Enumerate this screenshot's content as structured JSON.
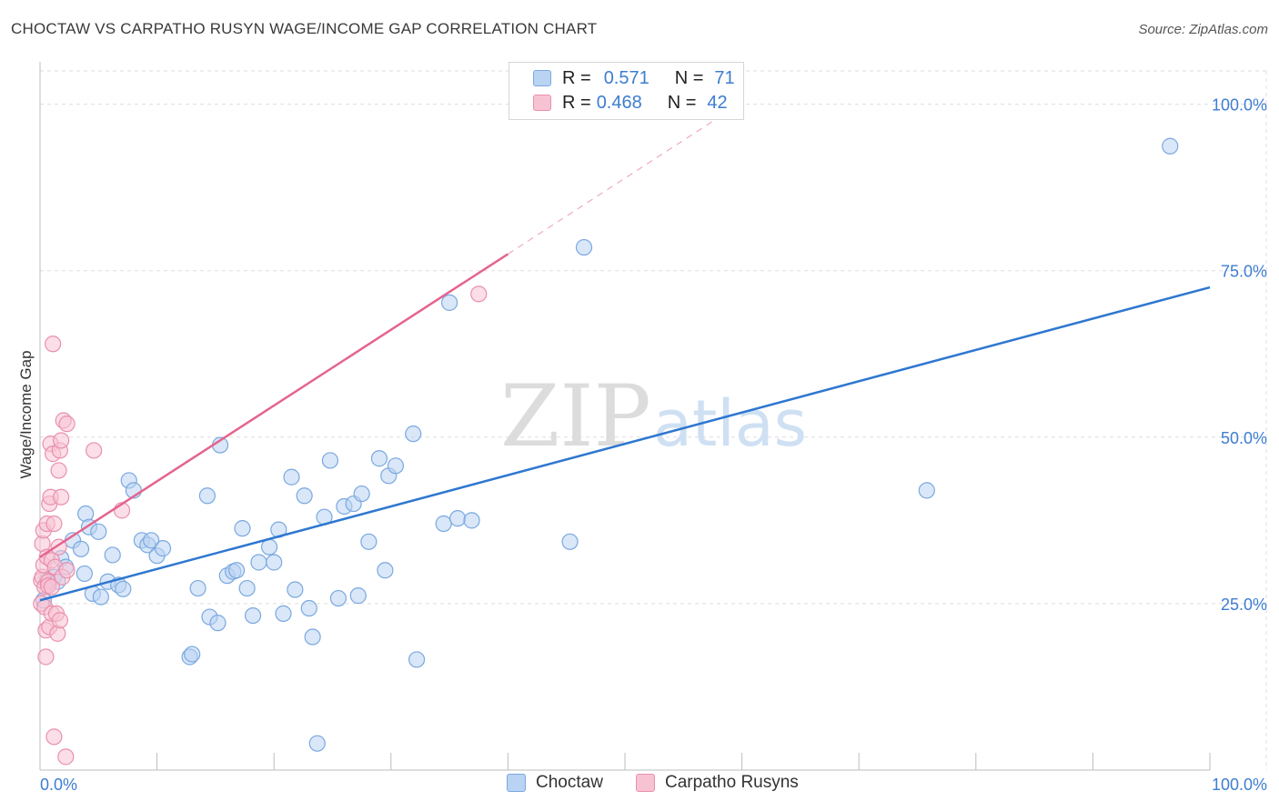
{
  "header": {
    "title": "CHOCTAW VS CARPATHO RUSYN WAGE/INCOME GAP CORRELATION CHART",
    "source": "Source: ZipAtlas.com"
  },
  "watermark": {
    "zip": "ZIP",
    "atlas": "atlas"
  },
  "legend_top": {
    "rows": [
      {
        "r_label": "R =",
        "r_value": "0.571",
        "n_label": "N =",
        "n_value": "71"
      },
      {
        "r_label": "R =",
        "r_value": "0.468",
        "n_label": "N =",
        "n_value": "42"
      }
    ]
  },
  "legend_bottom": {
    "items": [
      {
        "label": "Choctaw"
      },
      {
        "label": "Carpatho Rusyns"
      }
    ]
  },
  "colors": {
    "blue_fill": "#b9d3f3",
    "blue_stroke": "#7aa8e0",
    "blue_line": "#2e77d0",
    "pink_fill": "#f7c3d3",
    "pink_stroke": "#e990ad",
    "pink_line": "#e4648d",
    "tick_label": "#3d7dd0",
    "grid": "#dddddd"
  },
  "chart_data": {
    "type": "scatter",
    "title": "CHOCTAW VS CARPATHO RUSYN WAGE/INCOME GAP CORRELATION CHART",
    "xlabel": "",
    "ylabel": "Wage/Income Gap",
    "xlim": [
      0,
      100
    ],
    "ylim": [
      0,
      105
    ],
    "x_tick_labels": [
      "0.0%",
      "100.0%"
    ],
    "y_ticks": [
      {
        "value": 25,
        "label": "25.0%"
      },
      {
        "value": 50,
        "label": "50.0%"
      },
      {
        "value": 75,
        "label": "75.0%"
      },
      {
        "value": 100,
        "label": "100.0%"
      }
    ],
    "grid": true,
    "series": [
      {
        "name": "Choctaw",
        "r": 0.571,
        "n": 71,
        "trend": {
          "x0": 0,
          "y0": 25.5,
          "x1": 100,
          "y1": 72.5,
          "dashed_to": null
        },
        "points": [
          [
            0.3,
            25.5
          ],
          [
            0.6,
            28.5
          ],
          [
            1.2,
            29.0
          ],
          [
            1.5,
            28.3
          ],
          [
            1.8,
            31.8
          ],
          [
            2.2,
            30.5
          ],
          [
            2.8,
            34.5
          ],
          [
            3.5,
            33.2
          ],
          [
            3.8,
            29.5
          ],
          [
            3.9,
            38.5
          ],
          [
            4.2,
            36.5
          ],
          [
            4.5,
            26.5
          ],
          [
            5.0,
            35.8
          ],
          [
            5.2,
            26.0
          ],
          [
            5.8,
            28.3
          ],
          [
            6.2,
            32.3
          ],
          [
            6.7,
            27.8
          ],
          [
            7.1,
            27.2
          ],
          [
            7.6,
            43.5
          ],
          [
            8.0,
            42.0
          ],
          [
            8.7,
            34.5
          ],
          [
            9.2,
            33.8
          ],
          [
            9.5,
            34.5
          ],
          [
            10.0,
            32.2
          ],
          [
            10.5,
            33.3
          ],
          [
            12.8,
            17.0
          ],
          [
            13.0,
            17.4
          ],
          [
            13.5,
            27.3
          ],
          [
            14.3,
            41.2
          ],
          [
            14.5,
            23.0
          ],
          [
            15.2,
            22.1
          ],
          [
            15.4,
            48.8
          ],
          [
            16.0,
            29.2
          ],
          [
            16.5,
            29.8
          ],
          [
            16.8,
            30.0
          ],
          [
            17.3,
            36.3
          ],
          [
            17.7,
            27.3
          ],
          [
            18.2,
            23.2
          ],
          [
            18.7,
            31.2
          ],
          [
            19.6,
            33.5
          ],
          [
            20.0,
            31.2
          ],
          [
            20.4,
            36.1
          ],
          [
            20.8,
            23.5
          ],
          [
            21.5,
            44.0
          ],
          [
            21.8,
            27.1
          ],
          [
            22.6,
            41.2
          ],
          [
            23.0,
            24.3
          ],
          [
            23.3,
            20.0
          ],
          [
            24.3,
            38.0
          ],
          [
            24.8,
            46.5
          ],
          [
            25.5,
            25.8
          ],
          [
            26.0,
            39.6
          ],
          [
            26.8,
            40.0
          ],
          [
            27.2,
            26.2
          ],
          [
            27.5,
            41.5
          ],
          [
            28.1,
            34.3
          ],
          [
            29.0,
            46.8
          ],
          [
            29.5,
            30.0
          ],
          [
            29.8,
            44.2
          ],
          [
            30.4,
            45.7
          ],
          [
            31.9,
            50.5
          ],
          [
            32.2,
            16.6
          ],
          [
            34.5,
            37.0
          ],
          [
            35.0,
            70.2
          ],
          [
            35.7,
            37.8
          ],
          [
            36.9,
            37.5
          ],
          [
            45.3,
            34.3
          ],
          [
            46.5,
            78.5
          ],
          [
            75.8,
            42.0
          ],
          [
            96.6,
            93.7
          ],
          [
            23.7,
            4.0
          ]
        ]
      },
      {
        "name": "Carpatho Rusyns",
        "r": 0.468,
        "n": 42,
        "trend": {
          "x0": 0,
          "y0": 32.0,
          "x1": 40,
          "y1": 77.5,
          "dashed_to": {
            "x": 58,
            "y": 98
          }
        },
        "points": [
          [
            0.1,
            28.5
          ],
          [
            0.1,
            25.0
          ],
          [
            0.2,
            34.0
          ],
          [
            0.2,
            29.0
          ],
          [
            0.3,
            36.0
          ],
          [
            0.3,
            30.8
          ],
          [
            0.4,
            27.5
          ],
          [
            0.4,
            24.5
          ],
          [
            0.5,
            21.0
          ],
          [
            0.5,
            17.0
          ],
          [
            0.6,
            37.0
          ],
          [
            0.6,
            32.0
          ],
          [
            0.7,
            28.3
          ],
          [
            0.7,
            27.7
          ],
          [
            0.8,
            21.5
          ],
          [
            0.8,
            40.0
          ],
          [
            0.9,
            49.0
          ],
          [
            0.9,
            41.0
          ],
          [
            1.0,
            31.5
          ],
          [
            1.0,
            27.5
          ],
          [
            1.0,
            23.5
          ],
          [
            1.1,
            64.0
          ],
          [
            1.1,
            47.5
          ],
          [
            1.2,
            5.0
          ],
          [
            1.2,
            37.0
          ],
          [
            1.3,
            30.5
          ],
          [
            1.4,
            23.5
          ],
          [
            1.5,
            20.5
          ],
          [
            1.6,
            45.0
          ],
          [
            1.6,
            33.5
          ],
          [
            1.7,
            22.5
          ],
          [
            1.7,
            48.0
          ],
          [
            1.8,
            49.5
          ],
          [
            1.8,
            41.0
          ],
          [
            1.9,
            29.0
          ],
          [
            2.0,
            52.5
          ],
          [
            2.2,
            2.0
          ],
          [
            2.3,
            52.0
          ],
          [
            2.3,
            30.0
          ],
          [
            4.6,
            48.0
          ],
          [
            7.0,
            39.0
          ],
          [
            37.5,
            71.5
          ]
        ]
      }
    ]
  }
}
